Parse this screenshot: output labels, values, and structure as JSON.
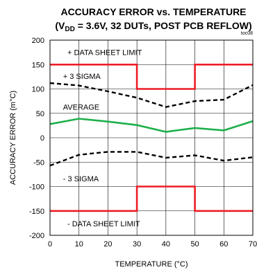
{
  "chart_data": {
    "type": "line",
    "figure_id": "toc08",
    "title": "ACCURACY ERROR vs. TEMPERATURE",
    "subtitle_parts": {
      "prefix": "(V",
      "subscript": "DD",
      "suffix": " = 3.6V, 32 DUTs, POST PCB REFLOW)"
    },
    "xlabel": "TEMPERATURE (°C)",
    "ylabel": "ACCURACY ERROR (m°C)",
    "xlim": [
      0,
      70
    ],
    "ylim": [
      -200,
      200
    ],
    "xticks": [
      0,
      10,
      20,
      30,
      40,
      50,
      60,
      70
    ],
    "yticks": [
      -200,
      -150,
      -100,
      -50,
      0,
      50,
      100,
      150,
      200
    ],
    "grid": true,
    "series": [
      {
        "key": "upper_limit",
        "color": "#ee1c25",
        "style": "solid",
        "x": [
          0,
          30,
          30,
          50,
          50,
          70
        ],
        "y": [
          150,
          150,
          100,
          100,
          150,
          150
        ]
      },
      {
        "key": "lower_limit",
        "color": "#ee1c25",
        "style": "solid",
        "x": [
          0,
          30,
          30,
          50,
          50,
          70
        ],
        "y": [
          -150,
          -150,
          -100,
          -100,
          -150,
          -150
        ]
      },
      {
        "key": "plus_3_sigma",
        "color": "#000000",
        "style": "dashed",
        "x": [
          0,
          10,
          20,
          30,
          40,
          50,
          60,
          70
        ],
        "y": [
          112,
          107,
          95,
          82,
          63,
          75,
          78,
          108
        ]
      },
      {
        "key": "average",
        "color": "#1db04b",
        "style": "solid",
        "x": [
          0,
          10,
          20,
          30,
          40,
          50,
          60,
          70
        ],
        "y": [
          28,
          39,
          33,
          26,
          12,
          20,
          15,
          34
        ]
      },
      {
        "key": "minus_3_sigma",
        "color": "#000000",
        "style": "dashed",
        "x": [
          0,
          10,
          20,
          30,
          40,
          50,
          60,
          70
        ],
        "y": [
          -57,
          -35,
          -29,
          -29,
          -41,
          -36,
          -47,
          -40
        ]
      }
    ],
    "annotations": [
      {
        "text": "+ DATA SHEET LIMIT",
        "x": 6,
        "y": 175
      },
      {
        "text": "+ 3 SIGMA",
        "x": 4.5,
        "y": 126
      },
      {
        "text": "AVERAGE",
        "x": 4.5,
        "y": 63
      },
      {
        "text": "- 3 SIGMA",
        "x": 4.5,
        "y": -84
      },
      {
        "text": "- DATA SHEET LIMIT",
        "x": 6,
        "y": -176
      }
    ]
  }
}
